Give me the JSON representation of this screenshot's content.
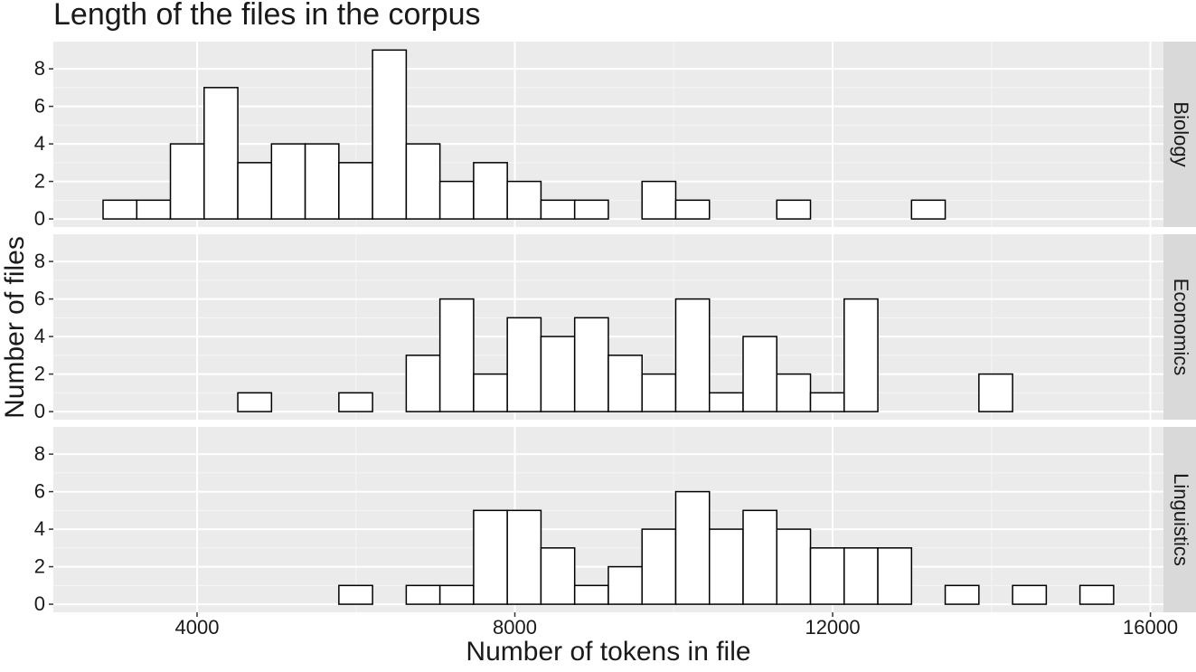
{
  "chart_data": {
    "type": "histogram",
    "facet": "rows",
    "title": "Length of the files in the corpus",
    "x_label": "Number of tokens in file",
    "y_label": "Number of files",
    "bins": [
      2817,
      3241,
      3665,
      4089,
      4513,
      4937,
      5361,
      5785,
      6209,
      6633,
      7057,
      7481,
      7905,
      8329,
      8753,
      9177,
      9601,
      10025,
      10449,
      10873,
      11297,
      11721,
      12145,
      12569,
      12993,
      13417,
      13841,
      14265,
      14689,
      15113,
      15537
    ],
    "series": [
      {
        "name": "Biology",
        "color": "#ffffff",
        "values": [
          1,
          1,
          4,
          7,
          3,
          4,
          4,
          3,
          9,
          4,
          2,
          3,
          2,
          1,
          1,
          0,
          2,
          1,
          0,
          0,
          1,
          0,
          0,
          0,
          1,
          0,
          0,
          0,
          0,
          0
        ]
      },
      {
        "name": "Economics",
        "color": "#ffffff",
        "values": [
          0,
          0,
          0,
          0,
          1,
          0,
          0,
          1,
          0,
          3,
          6,
          2,
          5,
          4,
          5,
          3,
          2,
          6,
          1,
          4,
          2,
          1,
          6,
          0,
          0,
          0,
          2,
          0,
          0,
          0
        ]
      },
      {
        "name": "Linguistics",
        "color": "#ffffff",
        "values": [
          0,
          0,
          0,
          0,
          0,
          0,
          0,
          1,
          0,
          1,
          1,
          5,
          5,
          3,
          1,
          2,
          4,
          6,
          4,
          5,
          4,
          3,
          3,
          3,
          0,
          1,
          0,
          1,
          0,
          1
        ]
      }
    ],
    "xlim": [
      2191,
      16164
    ],
    "xticks": [
      4000,
      8000,
      12000,
      16000
    ],
    "ylim": [
      -0.43,
      9.45
    ],
    "yticks": [
      0,
      2,
      4,
      6,
      8
    ],
    "grid": true
  }
}
